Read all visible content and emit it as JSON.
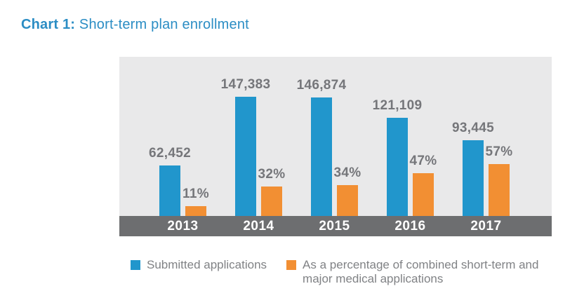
{
  "header": {
    "title_prefix": "Chart 1:",
    "title_rest": " Short-term plan enrollment",
    "title_color": "#2b8dc4"
  },
  "chart_data": {
    "type": "bar",
    "title": "Chart 1: Short-term plan enrollment",
    "categories": [
      "2013",
      "2014",
      "2015",
      "2016",
      "2017"
    ],
    "series": [
      {
        "name": "Submitted applications",
        "color": "#2196cc",
        "values": [
          62452,
          147383,
          146874,
          121109,
          93445
        ],
        "value_labels": [
          "62,452",
          "147,383",
          "146,874",
          "121,109",
          "93,445"
        ]
      },
      {
        "name": "As a percentage of combined short-term and major medical applications",
        "color": "#f28f33",
        "unit": "%",
        "values": [
          11,
          32,
          34,
          47,
          57
        ],
        "value_labels": [
          "11%",
          "32%",
          "34%",
          "47%",
          "57%"
        ]
      }
    ],
    "xlabel": "",
    "ylabel": "",
    "grid": false,
    "data_labels": true,
    "legend_position": "bottom",
    "plot_background": "#e9e9ea",
    "axis_band_color": "#6d6e70",
    "axis_label_color": "#ffffff",
    "data_label_color": "#75767a"
  }
}
